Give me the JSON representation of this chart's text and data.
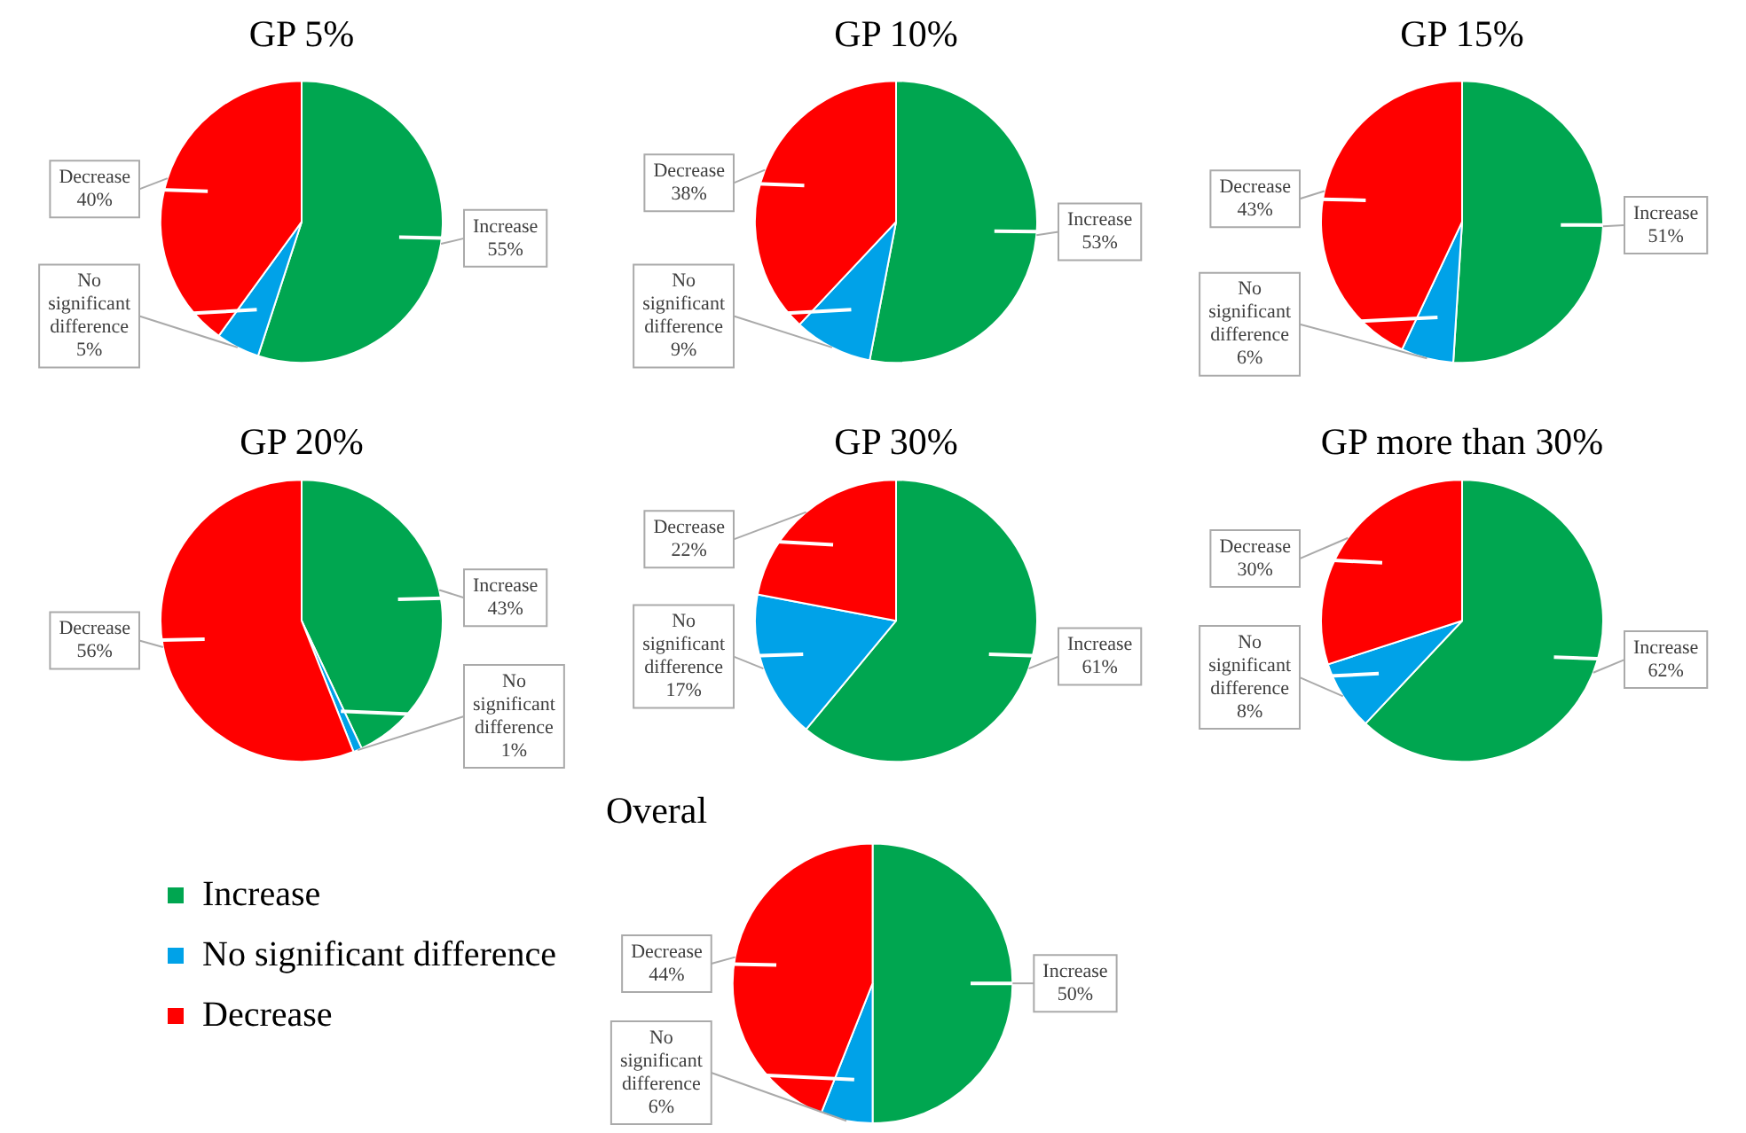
{
  "chart_data": [
    {
      "type": "pie",
      "title": "GP 5%",
      "categories": [
        "Increase",
        "No significant difference",
        "Decrease"
      ],
      "values": [
        55,
        5,
        40
      ],
      "colors": [
        "#00a650",
        "#00a2e8",
        "#ff0000"
      ],
      "value_labels": [
        "55%",
        "5%",
        "40%"
      ]
    },
    {
      "type": "pie",
      "title": "GP 10%",
      "categories": [
        "Increase",
        "No significant difference",
        "Decrease"
      ],
      "values": [
        53,
        9,
        38
      ],
      "colors": [
        "#00a650",
        "#00a2e8",
        "#ff0000"
      ],
      "value_labels": [
        "53%",
        "9%",
        "38%"
      ]
    },
    {
      "type": "pie",
      "title": "GP 15%",
      "categories": [
        "Increase",
        "No significant difference",
        "Decrease"
      ],
      "values": [
        51,
        6,
        43
      ],
      "colors": [
        "#00a650",
        "#00a2e8",
        "#ff0000"
      ],
      "value_labels": [
        "51%",
        "6%",
        "43%"
      ]
    },
    {
      "type": "pie",
      "title": "GP 20%",
      "categories": [
        "Increase",
        "No significant difference",
        "Decrease"
      ],
      "values": [
        43,
        1,
        56
      ],
      "colors": [
        "#00a650",
        "#00a2e8",
        "#ff0000"
      ],
      "value_labels": [
        "43%",
        "1%",
        "56%"
      ]
    },
    {
      "type": "pie",
      "title": "GP 30%",
      "categories": [
        "Increase",
        "No significant difference",
        "Decrease"
      ],
      "values": [
        61,
        17,
        22
      ],
      "colors": [
        "#00a650",
        "#00a2e8",
        "#ff0000"
      ],
      "value_labels": [
        "61%",
        "17%",
        "22%"
      ]
    },
    {
      "type": "pie",
      "title": "GP more than 30%",
      "categories": [
        "Increase",
        "No significant difference",
        "Decrease"
      ],
      "values": [
        62,
        8,
        30
      ],
      "colors": [
        "#00a650",
        "#00a2e8",
        "#ff0000"
      ],
      "value_labels": [
        "62%",
        "8%",
        "30%"
      ]
    },
    {
      "type": "pie",
      "title": "Overal",
      "categories": [
        "Increase",
        "No significant difference",
        "Decrease"
      ],
      "values": [
        50,
        6,
        44
      ],
      "colors": [
        "#00a650",
        "#00a2e8",
        "#ff0000"
      ],
      "value_labels": [
        "50%",
        "6%",
        "44%"
      ],
      "legend": "left"
    }
  ]
}
